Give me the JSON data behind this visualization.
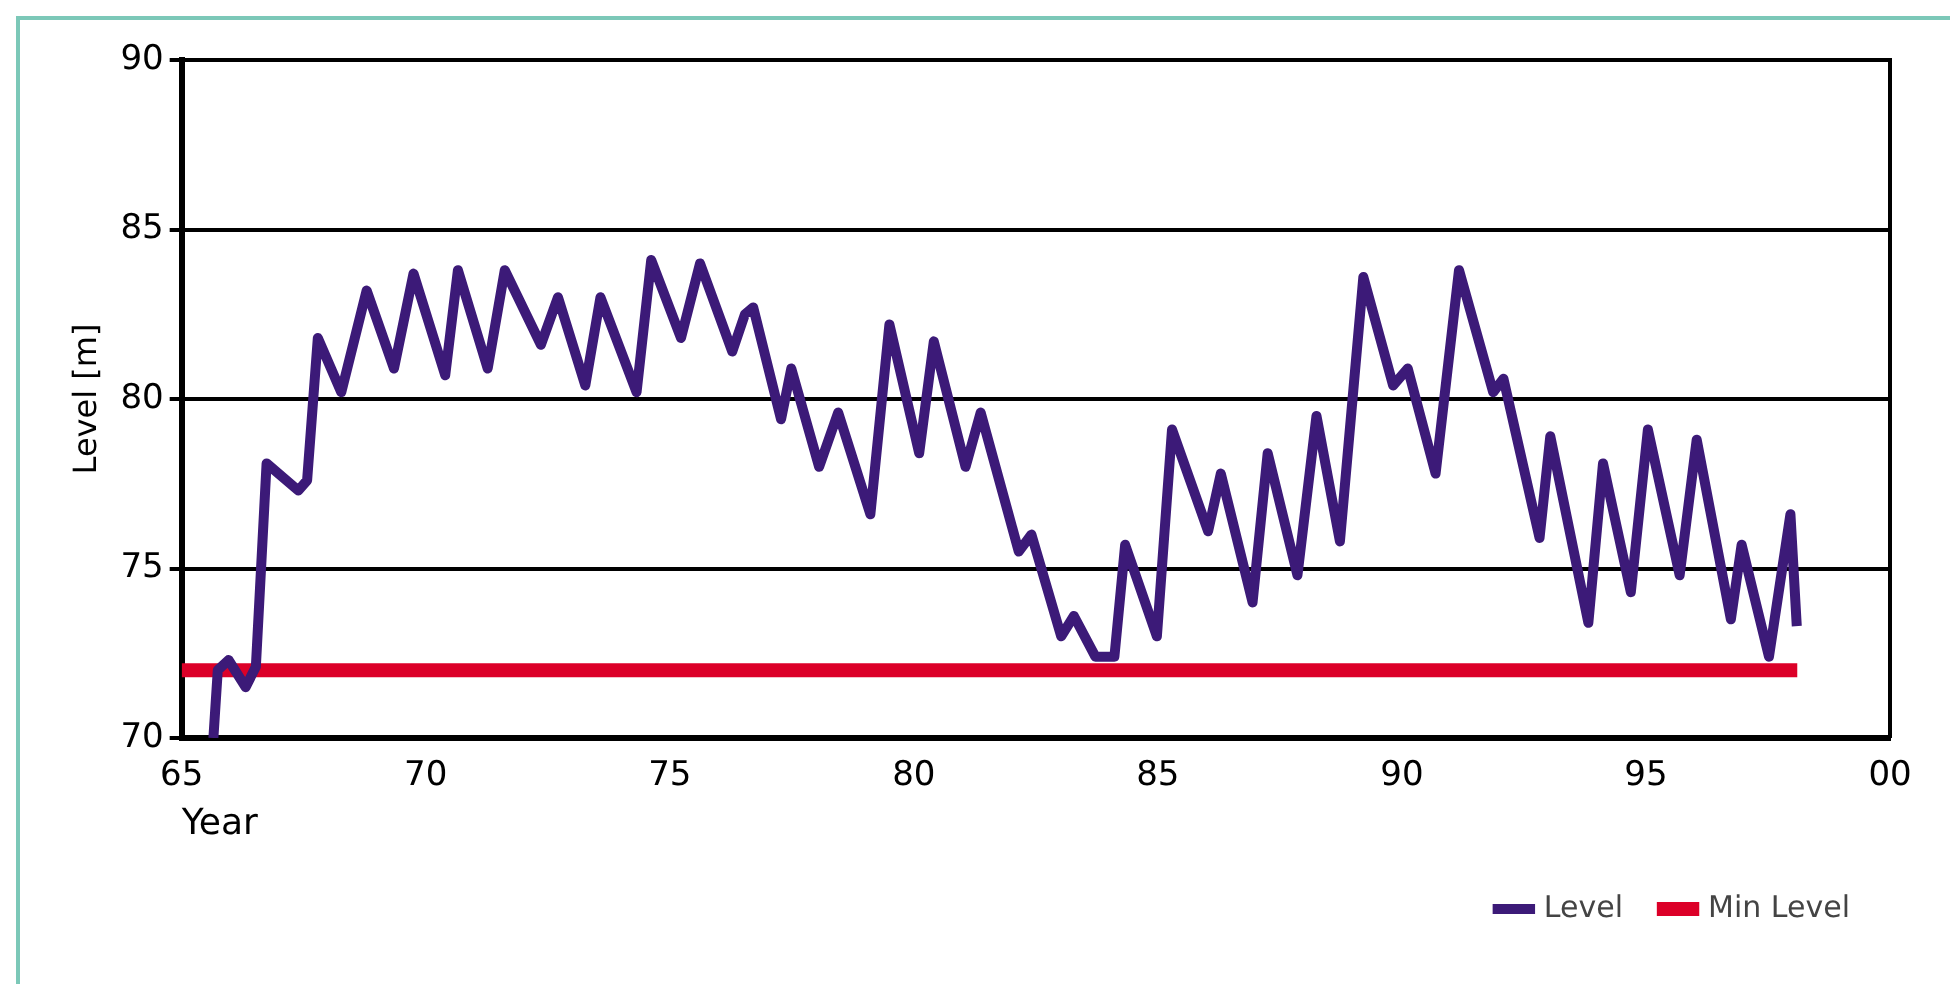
{
  "chart_data": {
    "type": "line",
    "xlabel": "Year",
    "ylabel": "Level [m]",
    "xlim": [
      1965,
      2000
    ],
    "xticks": [
      {
        "value": 1965,
        "label": "65"
      },
      {
        "value": 1970,
        "label": "70"
      },
      {
        "value": 1975,
        "label": "75"
      },
      {
        "value": 1980,
        "label": "80"
      },
      {
        "value": 1985,
        "label": "85"
      },
      {
        "value": 1990,
        "label": "90"
      },
      {
        "value": 1995,
        "label": "95"
      },
      {
        "value": 2000,
        "label": "00"
      }
    ],
    "ylim": [
      70,
      90
    ],
    "yticks": [
      70,
      75,
      80,
      85,
      90
    ],
    "grid": "y",
    "legend": "bottom right",
    "marker": "none",
    "line_style": "solid",
    "series": [
      {
        "name": "Level",
        "color": "#3c1a78",
        "x": [
          1965.65,
          1965.74,
          1965.96,
          1966.31,
          1966.52,
          1966.74,
          1967.39,
          1967.57,
          1967.79,
          1968.27,
          1968.79,
          1969.35,
          1969.75,
          1970.4,
          1970.66,
          1971.27,
          1971.62,
          1972.36,
          1972.71,
          1973.27,
          1973.58,
          1974.32,
          1974.62,
          1975.23,
          1975.62,
          1976.28,
          1976.54,
          1976.71,
          1977.28,
          1977.49,
          1978.06,
          1978.45,
          1979.11,
          1979.5,
          1980.11,
          1980.41,
          1981.06,
          1981.37,
          1982.15,
          1982.41,
          1983.02,
          1983.28,
          1983.72,
          1984.11,
          1984.33,
          1984.98,
          1985.29,
          1986.03,
          1986.29,
          1986.94,
          1987.25,
          1987.86,
          1988.25,
          1988.73,
          1989.21,
          1989.82,
          1990.12,
          1990.69,
          1991.17,
          1991.87,
          1992.08,
          1992.82,
          1993.04,
          1993.82,
          1994.12,
          1994.69,
          1995.04,
          1995.69,
          1996.04,
          1996.74,
          1996.96,
          1997.52,
          1997.96,
          1998.09
        ],
        "values": [
          70,
          72.0,
          72.3,
          71.5,
          72.1,
          78.1,
          77.3,
          77.6,
          81.8,
          80.2,
          83.2,
          80.9,
          83.7,
          80.7,
          83.8,
          80.9,
          83.8,
          81.6,
          83.0,
          80.4,
          83.0,
          80.2,
          84.1,
          81.8,
          84.0,
          81.4,
          82.5,
          82.7,
          79.4,
          80.9,
          78.0,
          79.6,
          76.6,
          82.2,
          78.4,
          81.7,
          78.0,
          79.6,
          75.5,
          76.0,
          73.0,
          73.6,
          72.4,
          72.4,
          75.7,
          73.0,
          79.1,
          76.1,
          77.8,
          74.0,
          78.4,
          74.8,
          79.5,
          75.8,
          83.6,
          80.4,
          80.9,
          77.8,
          83.8,
          80.2,
          80.6,
          75.9,
          78.9,
          73.4,
          78.1,
          74.3,
          79.1,
          74.8,
          78.8,
          73.5,
          75.7,
          72.4,
          76.6,
          73.3
        ]
      },
      {
        "name": "Min Level",
        "color": "#dc0028",
        "x": [
          1965,
          1998.1
        ],
        "values": [
          72,
          72
        ]
      }
    ]
  }
}
